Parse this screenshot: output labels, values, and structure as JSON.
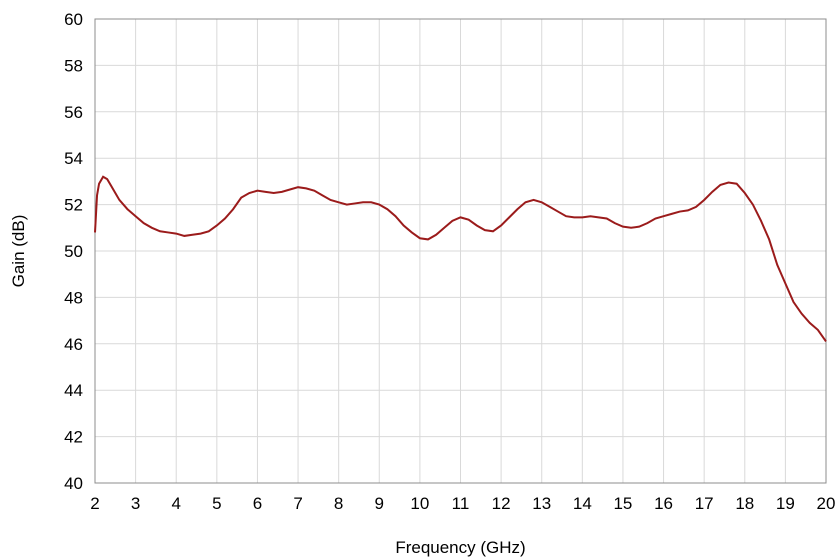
{
  "chart_data": {
    "type": "line",
    "title": "",
    "xlabel": "Frequency (GHz)",
    "ylabel": "Gain (dB)",
    "xlim": [
      2,
      20
    ],
    "ylim": [
      40,
      60
    ],
    "xticks": [
      2,
      3,
      4,
      5,
      6,
      7,
      8,
      9,
      10,
      11,
      12,
      13,
      14,
      15,
      16,
      17,
      18,
      19,
      20
    ],
    "yticks": [
      40,
      42,
      44,
      46,
      48,
      50,
      52,
      54,
      56,
      58,
      60
    ],
    "grid": true,
    "legend": "none",
    "series": [
      {
        "color": "#9B1B1B",
        "x": [
          2.0,
          2.05,
          2.1,
          2.2,
          2.3,
          2.4,
          2.5,
          2.6,
          2.8,
          3.0,
          3.2,
          3.4,
          3.6,
          3.8,
          4.0,
          4.2,
          4.4,
          4.6,
          4.8,
          5.0,
          5.2,
          5.4,
          5.6,
          5.8,
          6.0,
          6.2,
          6.4,
          6.6,
          6.8,
          7.0,
          7.2,
          7.4,
          7.6,
          7.8,
          8.0,
          8.2,
          8.4,
          8.6,
          8.8,
          9.0,
          9.2,
          9.4,
          9.6,
          9.8,
          10.0,
          10.2,
          10.4,
          10.6,
          10.8,
          11.0,
          11.2,
          11.4,
          11.6,
          11.8,
          12.0,
          12.2,
          12.4,
          12.6,
          12.8,
          13.0,
          13.2,
          13.4,
          13.6,
          13.8,
          14.0,
          14.2,
          14.4,
          14.6,
          14.8,
          15.0,
          15.2,
          15.4,
          15.6,
          15.8,
          16.0,
          16.2,
          16.4,
          16.6,
          16.8,
          17.0,
          17.2,
          17.4,
          17.6,
          17.8,
          18.0,
          18.2,
          18.4,
          18.6,
          18.8,
          19.0,
          19.2,
          19.4,
          19.6,
          19.8,
          20.0
        ],
        "y": [
          50.8,
          52.4,
          52.9,
          53.2,
          53.1,
          52.8,
          52.5,
          52.2,
          51.8,
          51.5,
          51.2,
          51.0,
          50.85,
          50.8,
          50.75,
          50.65,
          50.7,
          50.75,
          50.85,
          51.1,
          51.4,
          51.8,
          52.3,
          52.5,
          52.6,
          52.55,
          52.5,
          52.55,
          52.65,
          52.75,
          52.7,
          52.6,
          52.4,
          52.2,
          52.1,
          52.0,
          52.05,
          52.1,
          52.1,
          52.0,
          51.8,
          51.5,
          51.1,
          50.8,
          50.55,
          50.5,
          50.7,
          51.0,
          51.3,
          51.45,
          51.35,
          51.1,
          50.9,
          50.85,
          51.1,
          51.45,
          51.8,
          52.1,
          52.2,
          52.1,
          51.9,
          51.7,
          51.5,
          51.45,
          51.45,
          51.5,
          51.45,
          51.4,
          51.2,
          51.05,
          51.0,
          51.05,
          51.2,
          51.4,
          51.5,
          51.6,
          51.7,
          51.75,
          51.9,
          52.2,
          52.55,
          52.85,
          52.95,
          52.9,
          52.5,
          52.0,
          51.3,
          50.5,
          49.4,
          48.6,
          47.8,
          47.3,
          46.9,
          46.6,
          46.1
        ]
      }
    ]
  }
}
